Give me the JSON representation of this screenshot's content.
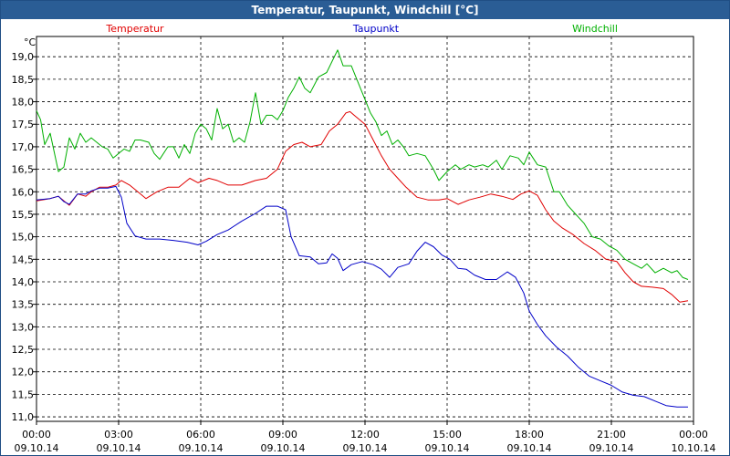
{
  "window": {
    "title": "Temperatur, Taupunkt, Windchill [°C]"
  },
  "colors": {
    "titlebar": "#2a5d95",
    "grid": "#000000"
  },
  "chart_data": {
    "type": "line",
    "title": "Temperatur, Taupunkt, Windchill [°C]",
    "ylabel": "°C",
    "xlabel": "",
    "ylim": [
      10.9,
      19.45
    ],
    "xlim_hours": [
      0,
      24
    ],
    "y_ticks": [
      "11,0",
      "11,5",
      "12,0",
      "12,5",
      "13,0",
      "13,5",
      "14,0",
      "14,5",
      "15,0",
      "15,5",
      "16,0",
      "16,5",
      "17,0",
      "17,5",
      "18,0",
      "18,5",
      "19,0"
    ],
    "x_ticks": [
      {
        "time": "00:00",
        "date": "09.10.14"
      },
      {
        "time": "03:00",
        "date": "09.10.14"
      },
      {
        "time": "06:00",
        "date": "09.10.14"
      },
      {
        "time": "09:00",
        "date": "09.10.14"
      },
      {
        "time": "12:00",
        "date": "09.10.14"
      },
      {
        "time": "15:00",
        "date": "09.10.14"
      },
      {
        "time": "18:00",
        "date": "09.10.14"
      },
      {
        "time": "21:00",
        "date": "09.10.14"
      },
      {
        "time": "00:00",
        "date": "10.10.14"
      }
    ],
    "grid": true,
    "legend_position": "top",
    "series": [
      {
        "name": "Temperatur",
        "color": "#e00000",
        "points": [
          [
            0,
            15.8
          ],
          [
            0.5,
            15.85
          ],
          [
            0.8,
            15.9
          ],
          [
            1.0,
            15.8
          ],
          [
            1.2,
            15.7
          ],
          [
            1.5,
            15.95
          ],
          [
            1.8,
            15.9
          ],
          [
            2.0,
            16.0
          ],
          [
            2.3,
            16.1
          ],
          [
            2.6,
            16.1
          ],
          [
            2.9,
            16.15
          ],
          [
            3.1,
            16.25
          ],
          [
            3.4,
            16.15
          ],
          [
            3.7,
            16.0
          ],
          [
            4.0,
            15.85
          ],
          [
            4.4,
            16.0
          ],
          [
            4.8,
            16.1
          ],
          [
            5.2,
            16.1
          ],
          [
            5.6,
            16.3
          ],
          [
            5.9,
            16.2
          ],
          [
            6.3,
            16.3
          ],
          [
            6.6,
            16.25
          ],
          [
            7.0,
            16.15
          ],
          [
            7.5,
            16.15
          ],
          [
            8.0,
            16.25
          ],
          [
            8.4,
            16.3
          ],
          [
            8.8,
            16.5
          ],
          [
            9.1,
            16.9
          ],
          [
            9.4,
            17.05
          ],
          [
            9.7,
            17.1
          ],
          [
            10.0,
            17.0
          ],
          [
            10.4,
            17.05
          ],
          [
            10.7,
            17.35
          ],
          [
            11.0,
            17.5
          ],
          [
            11.3,
            17.75
          ],
          [
            11.45,
            17.78
          ],
          [
            11.7,
            17.65
          ],
          [
            12.0,
            17.5
          ],
          [
            12.3,
            17.15
          ],
          [
            12.6,
            16.8
          ],
          [
            12.9,
            16.5
          ],
          [
            13.2,
            16.3
          ],
          [
            13.5,
            16.1
          ],
          [
            13.9,
            15.88
          ],
          [
            14.3,
            15.82
          ],
          [
            14.7,
            15.82
          ],
          [
            15.0,
            15.85
          ],
          [
            15.4,
            15.72
          ],
          [
            15.8,
            15.82
          ],
          [
            16.2,
            15.88
          ],
          [
            16.6,
            15.95
          ],
          [
            17.0,
            15.9
          ],
          [
            17.4,
            15.83
          ],
          [
            17.7,
            15.95
          ],
          [
            18.0,
            16.02
          ],
          [
            18.3,
            15.92
          ],
          [
            18.6,
            15.6
          ],
          [
            18.9,
            15.35
          ],
          [
            19.2,
            15.2
          ],
          [
            19.6,
            15.05
          ],
          [
            20.0,
            14.85
          ],
          [
            20.4,
            14.7
          ],
          [
            20.8,
            14.5
          ],
          [
            21.2,
            14.45
          ],
          [
            21.5,
            14.2
          ],
          [
            21.8,
            14.0
          ],
          [
            22.1,
            13.9
          ],
          [
            22.5,
            13.88
          ],
          [
            22.9,
            13.85
          ],
          [
            23.2,
            13.72
          ],
          [
            23.5,
            13.55
          ],
          [
            23.8,
            13.58
          ]
        ]
      },
      {
        "name": "Taupunkt",
        "color": "#0000c8",
        "points": [
          [
            0,
            15.82
          ],
          [
            0.5,
            15.85
          ],
          [
            0.8,
            15.9
          ],
          [
            1.0,
            15.78
          ],
          [
            1.2,
            15.72
          ],
          [
            1.5,
            15.95
          ],
          [
            1.8,
            15.95
          ],
          [
            2.0,
            16.02
          ],
          [
            2.3,
            16.08
          ],
          [
            2.6,
            16.08
          ],
          [
            2.9,
            16.12
          ],
          [
            3.1,
            15.88
          ],
          [
            3.3,
            15.3
          ],
          [
            3.6,
            15.02
          ],
          [
            4.0,
            14.95
          ],
          [
            4.5,
            14.95
          ],
          [
            5.0,
            14.92
          ],
          [
            5.5,
            14.88
          ],
          [
            5.9,
            14.82
          ],
          [
            6.2,
            14.9
          ],
          [
            6.6,
            15.05
          ],
          [
            7.0,
            15.15
          ],
          [
            7.5,
            15.35
          ],
          [
            8.0,
            15.52
          ],
          [
            8.4,
            15.68
          ],
          [
            8.8,
            15.68
          ],
          [
            9.1,
            15.6
          ],
          [
            9.3,
            15.0
          ],
          [
            9.6,
            14.58
          ],
          [
            10.0,
            14.55
          ],
          [
            10.3,
            14.4
          ],
          [
            10.6,
            14.42
          ],
          [
            10.8,
            14.62
          ],
          [
            11.0,
            14.52
          ],
          [
            11.2,
            14.25
          ],
          [
            11.5,
            14.38
          ],
          [
            11.9,
            14.45
          ],
          [
            12.3,
            14.38
          ],
          [
            12.6,
            14.28
          ],
          [
            12.9,
            14.1
          ],
          [
            13.2,
            14.32
          ],
          [
            13.6,
            14.4
          ],
          [
            13.9,
            14.68
          ],
          [
            14.2,
            14.88
          ],
          [
            14.5,
            14.78
          ],
          [
            14.8,
            14.6
          ],
          [
            15.1,
            14.5
          ],
          [
            15.4,
            14.3
          ],
          [
            15.7,
            14.28
          ],
          [
            16.0,
            14.15
          ],
          [
            16.4,
            14.05
          ],
          [
            16.8,
            14.05
          ],
          [
            17.2,
            14.22
          ],
          [
            17.5,
            14.1
          ],
          [
            17.8,
            13.75
          ],
          [
            18.0,
            13.35
          ],
          [
            18.3,
            13.05
          ],
          [
            18.6,
            12.8
          ],
          [
            19.0,
            12.55
          ],
          [
            19.4,
            12.35
          ],
          [
            19.8,
            12.1
          ],
          [
            20.2,
            11.9
          ],
          [
            20.6,
            11.8
          ],
          [
            21.0,
            11.7
          ],
          [
            21.4,
            11.55
          ],
          [
            21.8,
            11.48
          ],
          [
            22.2,
            11.45
          ],
          [
            22.6,
            11.35
          ],
          [
            23.0,
            11.25
          ],
          [
            23.4,
            11.22
          ],
          [
            23.8,
            11.22
          ]
        ]
      },
      {
        "name": "Windchill",
        "color": "#00b000",
        "points": [
          [
            0,
            17.8
          ],
          [
            0.15,
            17.6
          ],
          [
            0.3,
            17.05
          ],
          [
            0.5,
            17.3
          ],
          [
            0.8,
            16.45
          ],
          [
            1.0,
            16.55
          ],
          [
            1.2,
            17.2
          ],
          [
            1.4,
            16.95
          ],
          [
            1.6,
            17.3
          ],
          [
            1.8,
            17.1
          ],
          [
            2.0,
            17.2
          ],
          [
            2.2,
            17.1
          ],
          [
            2.4,
            17.0
          ],
          [
            2.6,
            16.95
          ],
          [
            2.8,
            16.75
          ],
          [
            3.0,
            16.85
          ],
          [
            3.2,
            16.95
          ],
          [
            3.4,
            16.9
          ],
          [
            3.6,
            17.15
          ],
          [
            3.8,
            17.15
          ],
          [
            4.1,
            17.1
          ],
          [
            4.3,
            16.85
          ],
          [
            4.5,
            16.72
          ],
          [
            4.8,
            17.0
          ],
          [
            5.0,
            17.0
          ],
          [
            5.2,
            16.75
          ],
          [
            5.4,
            17.05
          ],
          [
            5.6,
            16.85
          ],
          [
            5.8,
            17.3
          ],
          [
            6.0,
            17.5
          ],
          [
            6.2,
            17.4
          ],
          [
            6.4,
            17.15
          ],
          [
            6.6,
            17.85
          ],
          [
            6.8,
            17.4
          ],
          [
            7.0,
            17.5
          ],
          [
            7.2,
            17.1
          ],
          [
            7.4,
            17.2
          ],
          [
            7.6,
            17.1
          ],
          [
            7.8,
            17.55
          ],
          [
            8.0,
            18.2
          ],
          [
            8.2,
            17.5
          ],
          [
            8.4,
            17.7
          ],
          [
            8.6,
            17.7
          ],
          [
            8.8,
            17.6
          ],
          [
            9.0,
            17.8
          ],
          [
            9.2,
            18.1
          ],
          [
            9.4,
            18.3
          ],
          [
            9.6,
            18.55
          ],
          [
            9.8,
            18.3
          ],
          [
            10.0,
            18.2
          ],
          [
            10.3,
            18.55
          ],
          [
            10.6,
            18.65
          ],
          [
            10.8,
            18.9
          ],
          [
            11.0,
            19.15
          ],
          [
            11.2,
            18.8
          ],
          [
            11.5,
            18.8
          ],
          [
            11.7,
            18.5
          ],
          [
            12.0,
            18.05
          ],
          [
            12.2,
            17.75
          ],
          [
            12.4,
            17.55
          ],
          [
            12.6,
            17.25
          ],
          [
            12.8,
            17.35
          ],
          [
            13.0,
            17.05
          ],
          [
            13.2,
            17.15
          ],
          [
            13.4,
            17.0
          ],
          [
            13.6,
            16.8
          ],
          [
            13.9,
            16.85
          ],
          [
            14.2,
            16.8
          ],
          [
            14.5,
            16.5
          ],
          [
            14.7,
            16.25
          ],
          [
            15.0,
            16.45
          ],
          [
            15.3,
            16.6
          ],
          [
            15.5,
            16.5
          ],
          [
            15.8,
            16.6
          ],
          [
            16.0,
            16.55
          ],
          [
            16.3,
            16.6
          ],
          [
            16.5,
            16.55
          ],
          [
            16.8,
            16.7
          ],
          [
            17.0,
            16.5
          ],
          [
            17.3,
            16.8
          ],
          [
            17.6,
            16.75
          ],
          [
            17.8,
            16.6
          ],
          [
            18.0,
            16.88
          ],
          [
            18.3,
            16.6
          ],
          [
            18.6,
            16.55
          ],
          [
            18.9,
            16.0
          ],
          [
            19.1,
            16.0
          ],
          [
            19.4,
            15.7
          ],
          [
            19.7,
            15.5
          ],
          [
            20.0,
            15.3
          ],
          [
            20.3,
            15.0
          ],
          [
            20.6,
            14.95
          ],
          [
            20.9,
            14.8
          ],
          [
            21.2,
            14.7
          ],
          [
            21.5,
            14.5
          ],
          [
            21.8,
            14.4
          ],
          [
            22.1,
            14.3
          ],
          [
            22.3,
            14.4
          ],
          [
            22.6,
            14.2
          ],
          [
            22.9,
            14.3
          ],
          [
            23.2,
            14.2
          ],
          [
            23.4,
            14.25
          ],
          [
            23.6,
            14.1
          ],
          [
            23.8,
            14.05
          ]
        ]
      }
    ]
  }
}
